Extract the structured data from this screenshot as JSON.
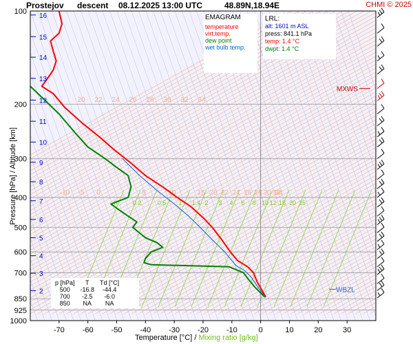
{
  "header": {
    "station": "Prostejov",
    "mode": "descent",
    "datetime": "08.12.2025 13:00 UTC",
    "coords": "48.89N,18.94E",
    "credit": "CHMI © 2025"
  },
  "legend": {
    "title": "EMAGRAM",
    "items": [
      {
        "label": "temperature",
        "color": "#ff0000"
      },
      {
        "label": "virt.temp.",
        "color": "#ff0000"
      },
      {
        "label": "dew point",
        "color": "#008000"
      },
      {
        "label": "wet bulb temp.",
        "color": "#0066cc"
      }
    ]
  },
  "lrl": {
    "title": "LRL:",
    "alt": "alt: 1601 m ASL",
    "press": "press: 841.1 hPa",
    "temp": "temp: 1.4 °C",
    "dwpt": "dwpt: 1.4 °C"
  },
  "levels_table": {
    "headers": [
      "p [hPa]",
      "T",
      "Td [°C]"
    ],
    "rows": [
      [
        "500",
        "-16.8",
        "-44.4"
      ],
      [
        "700",
        "-2.5",
        "-6.0"
      ],
      [
        "850",
        "NA",
        "NA"
      ]
    ]
  },
  "axes": {
    "xlabel_a": "Temperature [°C]  /",
    "xlabel_b": "Mixing ratio [g/kg]",
    "ylabel": "Pressure [hPa]  /  Altitude [km]"
  },
  "colors": {
    "temperature": "#ff0000",
    "dewpoint": "#008000",
    "wetbulb": "#0066cc",
    "isobar": "#999999",
    "dry_adiabat": "#f4b08c",
    "moist_adiabat": "#bbbbdd",
    "mixing_ratio": "#7dd321",
    "altitude": "#0000cc",
    "mxws": "#cc0000",
    "wbzl": "#3366cc"
  },
  "chart_data": {
    "type": "line",
    "title": "Prostejov descent 08.12.2025 13:00 UTC 48.89N,18.94E",
    "xlabel": "Temperature [°C] / Mixing ratio [g/kg]",
    "ylabel": "Pressure [hPa] / Altitude [km]",
    "xlim": [
      -80,
      40
    ],
    "ylim": [
      1000,
      100
    ],
    "y_scale": "log",
    "x_ticks": [
      -70,
      -60,
      -50,
      -40,
      -30,
      -20,
      -10,
      0,
      10,
      20,
      30
    ],
    "y_ticks": [
      100,
      200,
      300,
      400,
      500,
      600,
      700,
      850,
      925,
      1000
    ],
    "altitude_ticks_km": [
      {
        "km": "2",
        "p": 800
      },
      {
        "km": "3",
        "p": 703
      },
      {
        "km": "4",
        "p": 617
      },
      {
        "km": "5",
        "p": 540
      },
      {
        "km": "6",
        "p": 471
      },
      {
        "km": "7",
        "p": 410
      },
      {
        "km": "8",
        "p": 356
      },
      {
        "km": "9",
        "p": 308
      },
      {
        "km": "10",
        "p": 265
      },
      {
        "km": "11",
        "p": 227
      },
      {
        "km": "12",
        "p": 194
      },
      {
        "km": "13",
        "p": 165
      },
      {
        "km": "14",
        "p": 141
      },
      {
        "km": "15",
        "p": 121
      },
      {
        "km": "16",
        "p": 103
      }
    ],
    "dry_adiabat_labels": [
      "20",
      "22",
      "24",
      "26",
      "28",
      "30",
      "32",
      "34"
    ],
    "moist_adiabat_labels": [
      "-10",
      "-5",
      "0",
      "5",
      "10",
      "15",
      "20",
      "22",
      "24",
      "26",
      "28",
      "30",
      "32",
      "34"
    ],
    "mixing_ratio_labels": [
      "0",
      "0.2",
      "0.5",
      "1",
      "1.4",
      "2",
      "3",
      "4",
      "6",
      "8",
      "10",
      "12",
      "15",
      "20",
      "25"
    ],
    "series": [
      {
        "name": "temperature",
        "points": [
          [
            1.8,
            840
          ],
          [
            0.5,
            800
          ],
          [
            -1.2,
            750
          ],
          [
            -2.5,
            700
          ],
          [
            -4.5,
            670
          ],
          [
            -8.0,
            640
          ],
          [
            -10.5,
            600
          ],
          [
            -14.0,
            540
          ],
          [
            -16.8,
            500
          ],
          [
            -19.5,
            470
          ],
          [
            -24.0,
            430
          ],
          [
            -29.0,
            400
          ],
          [
            -34.0,
            370
          ],
          [
            -40.0,
            340
          ],
          [
            -45.0,
            310
          ],
          [
            -51.0,
            280
          ],
          [
            -56.0,
            255
          ],
          [
            -62.0,
            230
          ],
          [
            -68.0,
            205
          ],
          [
            -72.0,
            185
          ],
          [
            -76.0,
            175
          ],
          [
            -74.0,
            165
          ],
          [
            -72.0,
            155
          ],
          [
            -71.0,
            145
          ],
          [
            -72.0,
            135
          ],
          [
            -73.0,
            125
          ],
          [
            -70.0,
            118
          ],
          [
            -69.0,
            110
          ],
          [
            -70.0,
            100
          ]
        ]
      },
      {
        "name": "dew point",
        "points": [
          [
            1.5,
            840
          ],
          [
            -2.0,
            780
          ],
          [
            -4.0,
            740
          ],
          [
            -6.0,
            700
          ],
          [
            -11.0,
            670
          ],
          [
            -38.0,
            660
          ],
          [
            -40.5,
            650
          ],
          [
            -40.0,
            630
          ],
          [
            -38.0,
            600
          ],
          [
            -34.0,
            580
          ],
          [
            -36.0,
            560
          ],
          [
            -40.0,
            540
          ],
          [
            -44.4,
            500
          ],
          [
            -43.0,
            480
          ],
          [
            -46.0,
            460
          ],
          [
            -49.0,
            440
          ],
          [
            -52.0,
            420
          ],
          [
            -46.0,
            400
          ],
          [
            -45.0,
            370
          ],
          [
            -46.0,
            340
          ],
          [
            -50.0,
            320
          ],
          [
            -54.0,
            300
          ],
          [
            -60.0,
            275
          ],
          [
            -64.0,
            250
          ],
          [
            -70.0,
            215
          ],
          [
            -76.0,
            190
          ],
          [
            -80.0,
            175
          ],
          [
            -82.0,
            160
          ]
        ]
      },
      {
        "name": "wet bulb temp.",
        "points": [
          [
            1.6,
            840
          ],
          [
            -0.5,
            790
          ],
          [
            -3.5,
            720
          ],
          [
            -5.5,
            690
          ],
          [
            -8.5,
            665
          ],
          [
            -12.5,
            600
          ],
          [
            -17.5,
            540
          ],
          [
            -21.0,
            500
          ],
          [
            -25.0,
            460
          ],
          [
            -30.0,
            420
          ],
          [
            -36.0,
            380
          ],
          [
            -42.0,
            340
          ],
          [
            -48.0,
            300
          ]
        ]
      }
    ],
    "annotations": [
      "MXWS",
      "WBZL"
    ]
  }
}
